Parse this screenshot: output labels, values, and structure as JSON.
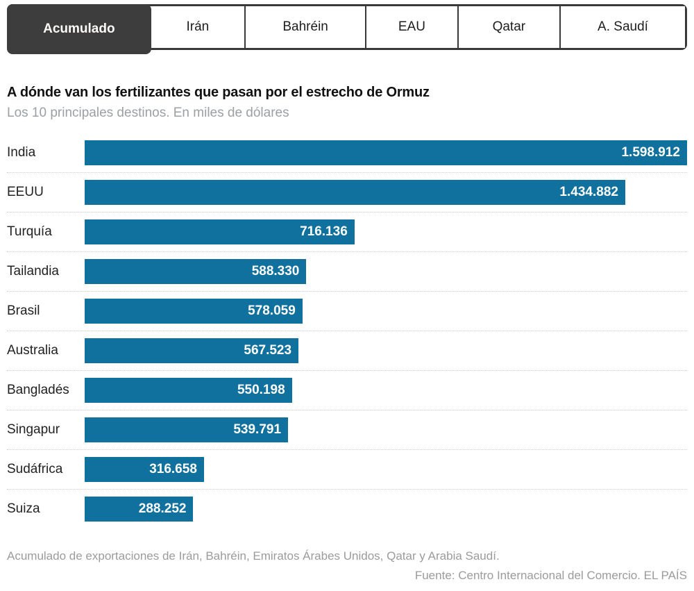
{
  "tabs": {
    "items": [
      {
        "label": "Acumulado",
        "active": true
      },
      {
        "label": "Irán",
        "active": false
      },
      {
        "label": "Bahréin",
        "active": false
      },
      {
        "label": "EAU",
        "active": false
      },
      {
        "label": "Qatar",
        "active": false
      },
      {
        "label": "A. Saudí",
        "active": false
      }
    ]
  },
  "header": {
    "title": "A dónde van los fertilizantes que pasan por el estrecho de Ormuz",
    "subtitle": "Los 10 principales destinos. En miles de dólares"
  },
  "chart_data": {
    "type": "bar",
    "orientation": "horizontal",
    "title": "A dónde van los fertilizantes que pasan por el estrecho de Ormuz",
    "subtitle": "Los 10 principales destinos. En miles de dólares",
    "unit": "miles de dólares",
    "categories": [
      "India",
      "EEUU",
      "Turquía",
      "Tailandia",
      "Brasil",
      "Australia",
      "Bangladés",
      "Singapur",
      "Sudáfrica",
      "Suiza"
    ],
    "values": [
      1598912,
      1434882,
      716136,
      588330,
      578059,
      567523,
      550198,
      539791,
      316658,
      288252
    ],
    "value_labels": [
      "1.598.912",
      "1.434.882",
      "716.136",
      "588.330",
      "578.059",
      "567.523",
      "550.198",
      "539.791",
      "316.658",
      "288.252"
    ],
    "xlabel": "",
    "ylabel": "",
    "xlim": [
      0,
      1598912
    ],
    "grid": false,
    "legend": false,
    "bar_color": "#11719e"
  },
  "footer": {
    "note": "Acumulado de exportaciones de Irán, Bahréin, Emiratos Árabes Unidos, Qatar y Arabia Saudí.",
    "source": "Fuente: Centro Internacional del Comercio. EL PAÍS"
  },
  "colors": {
    "bar": "#11719e",
    "tab_active_bg": "#3d3d3d",
    "tab_border": "#383838",
    "separator": "#c9cccd",
    "subtitle_text": "#9aa0a4",
    "footer_text": "#9b9b9b"
  }
}
